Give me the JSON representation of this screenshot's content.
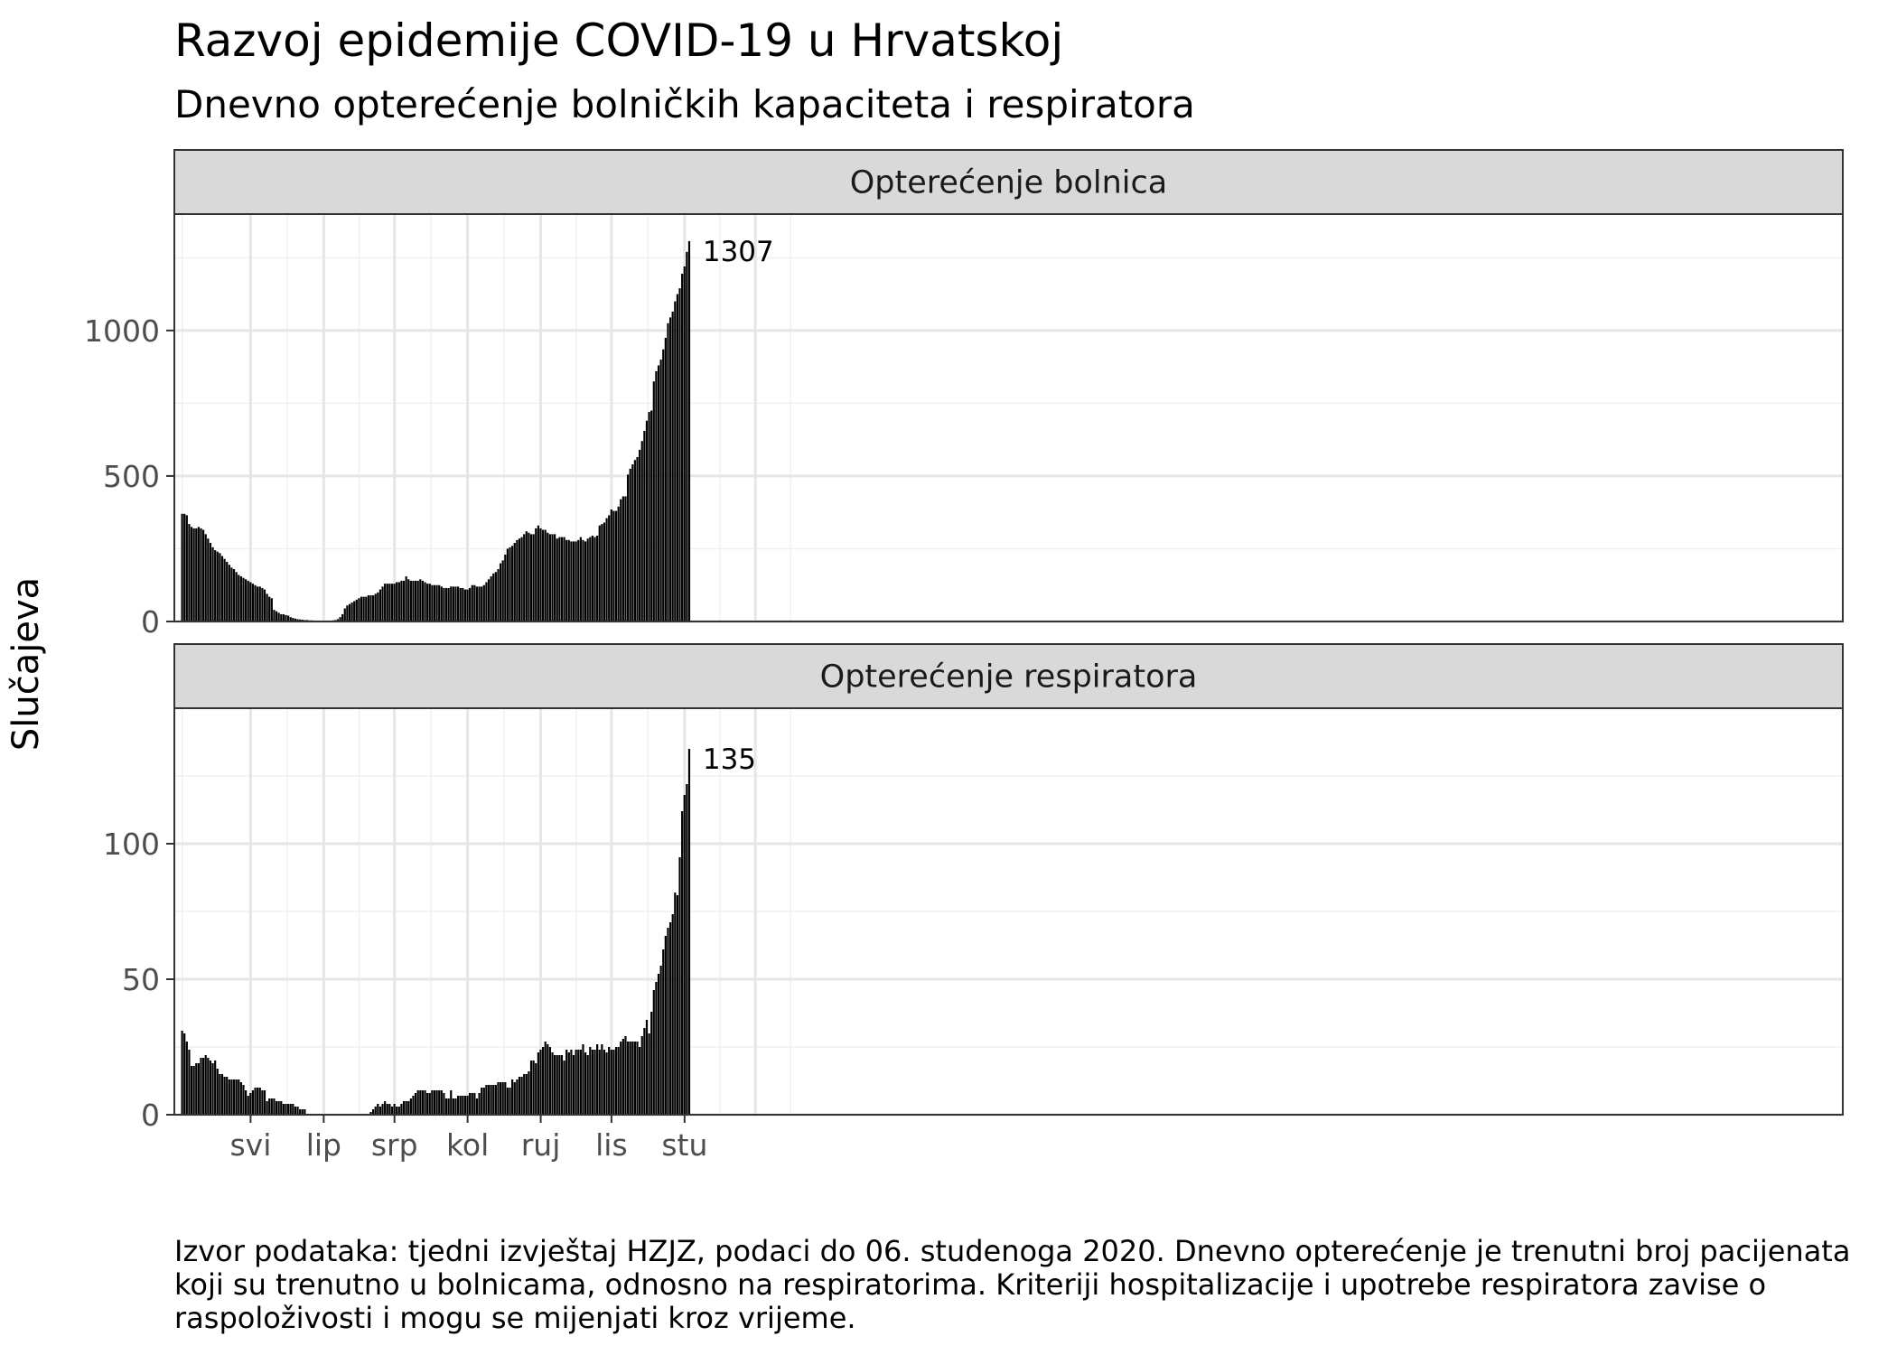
{
  "title": "Razvoj epidemije COVID-19 u Hrvatskoj",
  "subtitle": "Dnevno opterećenje bolničkih kapaciteta i respiratora",
  "caption": "Izvor podataka: tjedni izvještaj HZJZ, podaci do 06. studenoga 2020. Dnevno opterećenje je trenutni broj pacijenata koji su trenutno u bolnicama, odnosno na respiratorima. Kriteriji hospitalizacije i upotrebe respiratora zavise o raspoloživosti i mogu se mijenjati kroz vrijeme.",
  "chart_data": {
    "type": "bar",
    "ylabel": "Slučajeva",
    "xlabel": "",
    "x_start": "2020-04-02",
    "x_end": "2020-11-06",
    "x_ticks": [
      {
        "label": "svi",
        "date": "2020-05-01"
      },
      {
        "label": "lip",
        "date": "2020-06-01"
      },
      {
        "label": "srp",
        "date": "2020-07-01"
      },
      {
        "label": "kol",
        "date": "2020-08-01"
      },
      {
        "label": "ruj",
        "date": "2020-09-01"
      },
      {
        "label": "lis",
        "date": "2020-10-01"
      },
      {
        "label": "stu",
        "date": "2020-11-01"
      }
    ],
    "grid": true,
    "bar_color": "#000000",
    "panels": [
      {
        "name": "Opterećenje bolnica",
        "y_ticks": [
          0,
          500,
          1000
        ],
        "ylim": [
          0,
          1400
        ],
        "last_value_label": "1307",
        "values": [
          370,
          370,
          365,
          335,
          325,
          320,
          320,
          325,
          320,
          315,
          300,
          285,
          270,
          255,
          245,
          240,
          235,
          225,
          215,
          205,
          195,
          185,
          180,
          170,
          160,
          155,
          150,
          145,
          140,
          135,
          130,
          125,
          120,
          120,
          115,
          110,
          95,
          85,
          80,
          40,
          35,
          30,
          25,
          25,
          22,
          20,
          15,
          12,
          10,
          8,
          7,
          6,
          5,
          5,
          4,
          4,
          3,
          3,
          3,
          3,
          2,
          2,
          2,
          3,
          4,
          5,
          8,
          15,
          25,
          45,
          55,
          60,
          65,
          70,
          75,
          80,
          85,
          85,
          85,
          90,
          90,
          90,
          95,
          100,
          110,
          120,
          130,
          130,
          130,
          130,
          130,
          135,
          135,
          140,
          140,
          155,
          145,
          140,
          140,
          140,
          140,
          145,
          140,
          135,
          130,
          130,
          125,
          125,
          125,
          125,
          120,
          115,
          115,
          115,
          120,
          120,
          120,
          120,
          115,
          115,
          110,
          110,
          115,
          125,
          125,
          120,
          120,
          120,
          125,
          135,
          145,
          155,
          165,
          170,
          180,
          200,
          210,
          230,
          250,
          255,
          260,
          270,
          280,
          285,
          290,
          300,
          310,
          305,
          300,
          300,
          320,
          330,
          320,
          315,
          315,
          305,
          300,
          300,
          300,
          285,
          290,
          290,
          290,
          280,
          280,
          275,
          275,
          275,
          280,
          290,
          280,
          275,
          285,
          290,
          295,
          290,
          295,
          330,
          335,
          340,
          355,
          365,
          385,
          380,
          380,
          395,
          420,
          430,
          430,
          505,
          525,
          540,
          555,
          565,
          590,
          620,
          655,
          690,
          720,
          725,
          825,
          860,
          880,
          900,
          935,
          975,
          1025,
          1045,
          1065,
          1100,
          1125,
          1145,
          1195,
          1220,
          1270,
          1307
        ]
      },
      {
        "name": "Opterećenje respiratora",
        "y_ticks": [
          0,
          50,
          100
        ],
        "ylim": [
          0,
          150
        ],
        "last_value_label": "135",
        "values": [
          31,
          30,
          27,
          24,
          18,
          18,
          19,
          19,
          21,
          21,
          22,
          21,
          20,
          19,
          20,
          17,
          15,
          15,
          14,
          14,
          13,
          13,
          13,
          13,
          13,
          12,
          11,
          9,
          7,
          8,
          9,
          10,
          10,
          10,
          9,
          9,
          5,
          6,
          6,
          6,
          5,
          5,
          5,
          4,
          4,
          4,
          4,
          4,
          3,
          3,
          2,
          2,
          2,
          0,
          0,
          0,
          0,
          0,
          0,
          0,
          0,
          0,
          0,
          0,
          0,
          0,
          0,
          0,
          0,
          0,
          0,
          0,
          0,
          0,
          0,
          0,
          0,
          0,
          0,
          0,
          1,
          2,
          3,
          4,
          3,
          4,
          5,
          4,
          4,
          3,
          4,
          3,
          3,
          4,
          5,
          5,
          5,
          6,
          7,
          8,
          9,
          9,
          9,
          9,
          8,
          8,
          9,
          9,
          9,
          9,
          9,
          8,
          6,
          6,
          9,
          6,
          6,
          7,
          7,
          7,
          7,
          7,
          8,
          8,
          8,
          6,
          8,
          10,
          10,
          11,
          11,
          11,
          11,
          11,
          12,
          12,
          12,
          12,
          10,
          10,
          13,
          12,
          13,
          14,
          14,
          15,
          15,
          16,
          20,
          20,
          19,
          23,
          24,
          25,
          27,
          26,
          25,
          23,
          22,
          22,
          22,
          22,
          20,
          24,
          23,
          24,
          22,
          24,
          24,
          24,
          26,
          23,
          22,
          25,
          24,
          24,
          26,
          24,
          26,
          24,
          23,
          25,
          24,
          24,
          25,
          25,
          27,
          28,
          29,
          27,
          27,
          27,
          27,
          27,
          25,
          29,
          32,
          35,
          30,
          38,
          46,
          49,
          52,
          55,
          61,
          66,
          69,
          71,
          74,
          82,
          81,
          95,
          112,
          118,
          122,
          135
        ]
      }
    ]
  }
}
